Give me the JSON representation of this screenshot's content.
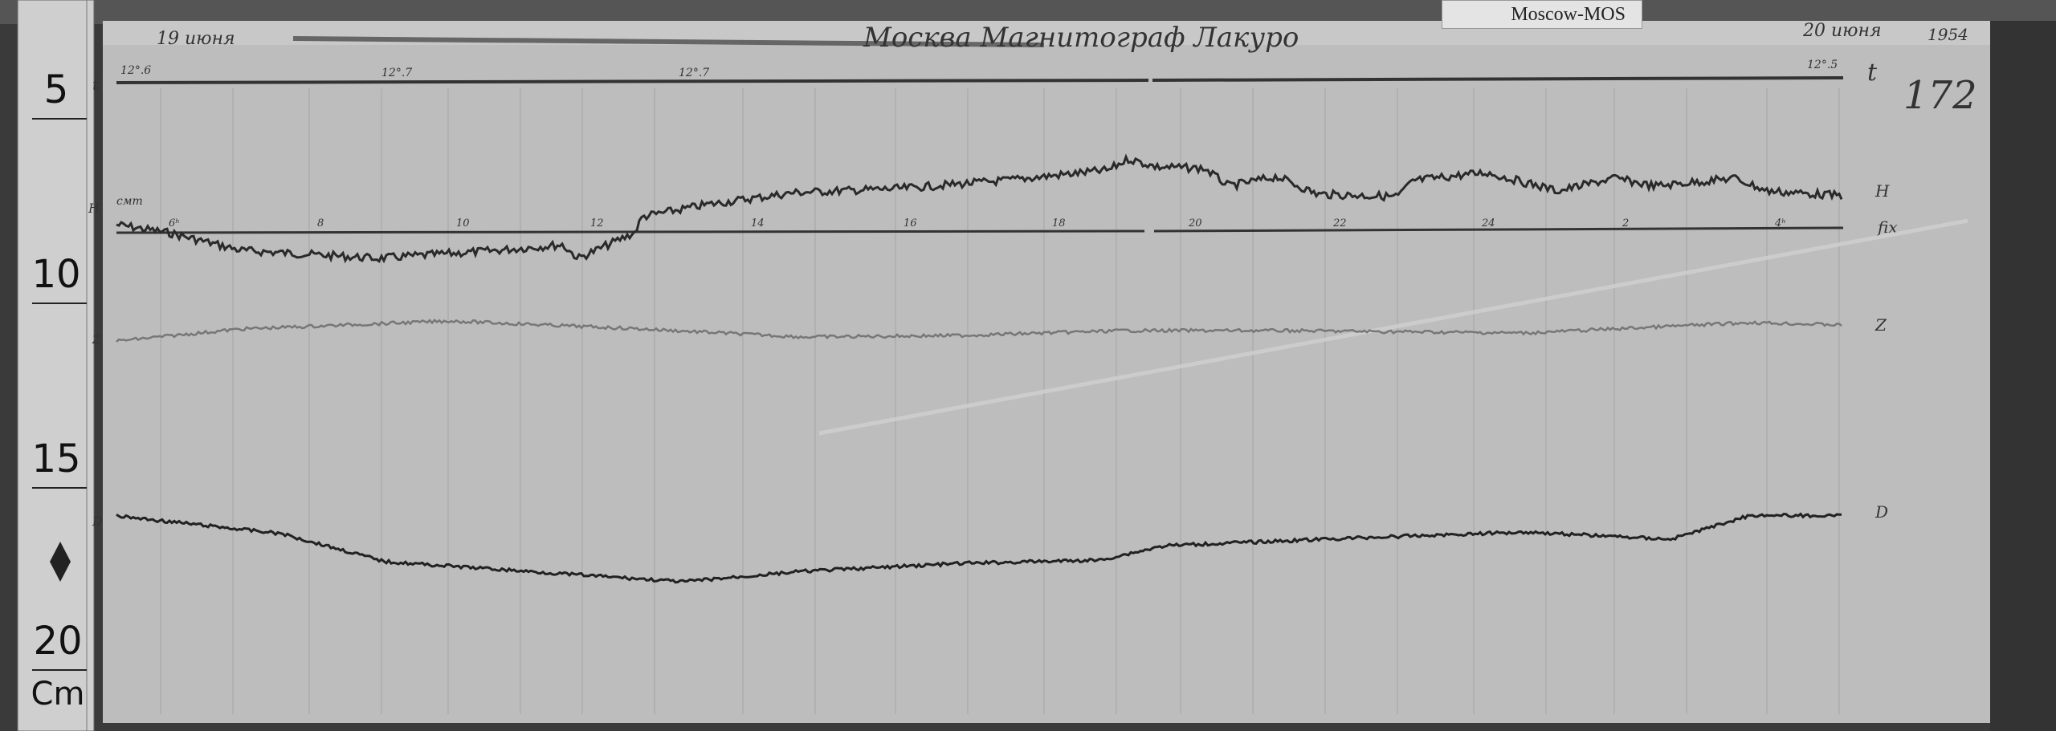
{
  "card_label": "Moscow-MOS",
  "header": {
    "date_start": "19 июня",
    "station": "Москва  Магнитограф  Лакуро",
    "date_end": "20 июня",
    "year": "1954"
  },
  "sheet_number": "172",
  "temperature_labels": [
    "12°.6",
    "12°.7",
    "12°.7",
    "12°.5"
  ],
  "trace_labels": {
    "t": "t",
    "H": "H",
    "Z": "Z",
    "D": "D",
    "fix": "fix",
    "cmt": "смт"
  },
  "hour_labels": [
    "6ʰ",
    "8",
    "10",
    "12",
    "14",
    "16",
    "18",
    "20",
    "22",
    "24",
    "2",
    "4ʰ"
  ],
  "ruler": {
    "marks": [
      "5",
      "10",
      "15",
      "20"
    ],
    "unit": "Cm"
  }
}
